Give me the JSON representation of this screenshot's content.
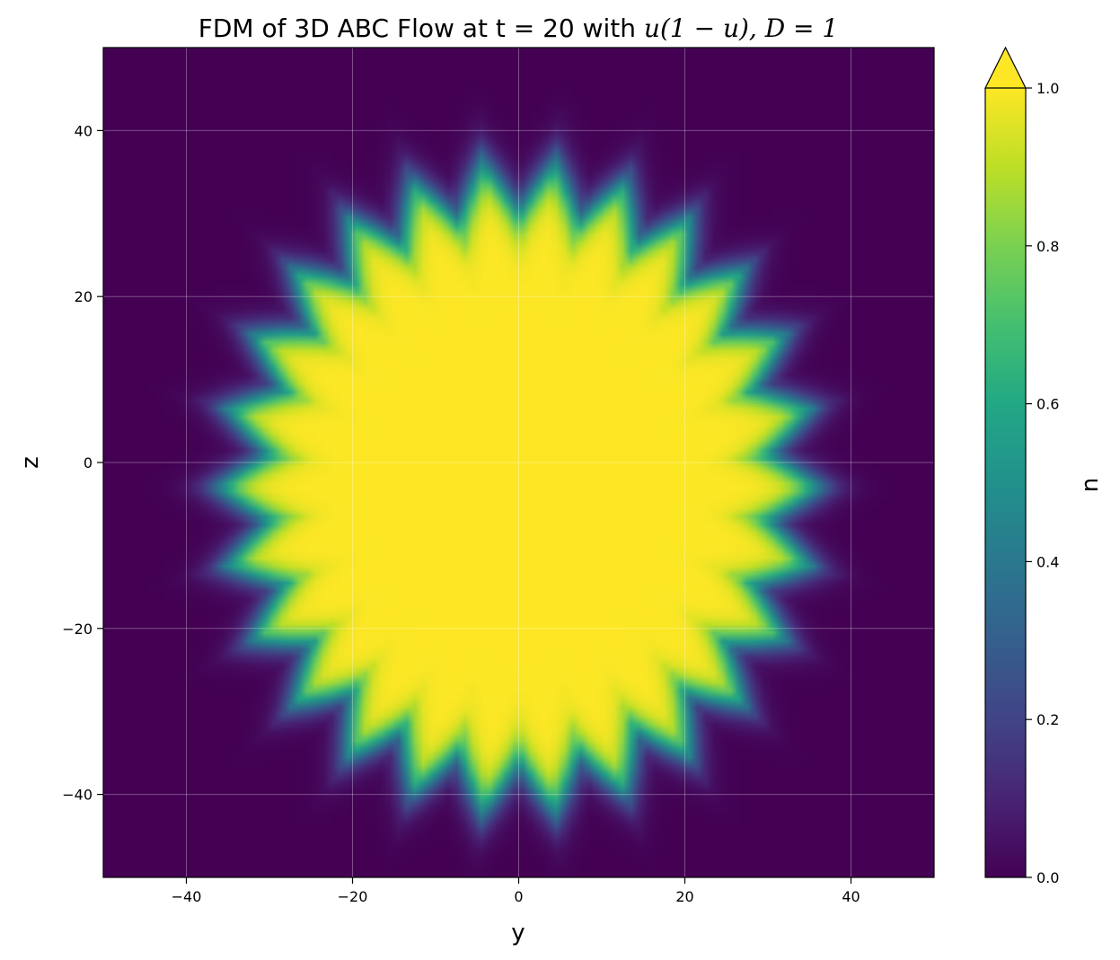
{
  "chart_data": {
    "type": "heatmap",
    "title": "FDM of 3D ABC Flow at t = 20 with u(1 − u), D = 1",
    "title_parts": {
      "prefix": "FDM of 3D ABC Flow at t = 20 with ",
      "math": "u(1 − u), D = 1"
    },
    "xlabel": "y",
    "ylabel": "z",
    "xlim": [
      -50,
      50
    ],
    "ylim": [
      -50,
      50
    ],
    "xticks": [
      -40,
      -20,
      0,
      20,
      40
    ],
    "yticks": [
      -40,
      -20,
      0,
      20,
      40
    ],
    "xtick_labels": [
      "−40",
      "−20",
      "0",
      "20",
      "40"
    ],
    "ytick_labels": [
      "−40",
      "−20",
      "0",
      "20",
      "40"
    ],
    "grid": true,
    "colormap": "viridis",
    "colorbar": {
      "label": "u",
      "range": [
        0.0,
        1.0
      ],
      "ticks": [
        0.0,
        0.2,
        0.4,
        0.6,
        0.8,
        1.0
      ],
      "tick_labels": [
        "0.0",
        "0.2",
        "0.4",
        "0.6",
        "0.8",
        "1.0"
      ],
      "extend": "max"
    },
    "field": {
      "description": "roughly circular saturated region (u≈1) with a jagged sawtooth edge where u drops to 0",
      "center_y": 0,
      "center_z": -3,
      "radius_y": 33,
      "radius_z": 36,
      "edge_lobes": 26,
      "edge_amplitude": 3,
      "edge_width": 4,
      "background": 0.0,
      "interior": 1.0
    }
  }
}
